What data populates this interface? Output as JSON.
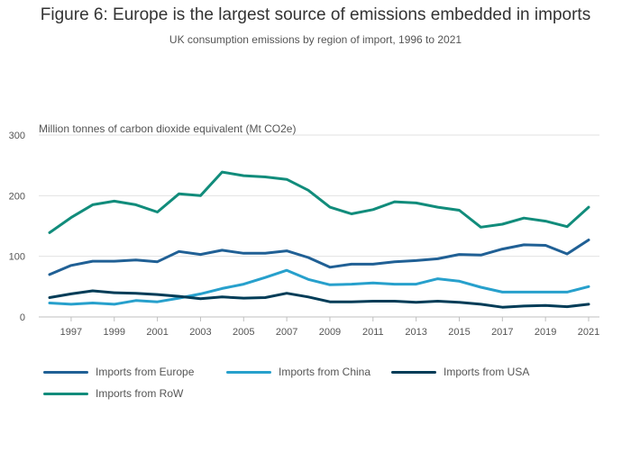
{
  "chart_data": {
    "type": "line",
    "title": "Figure 6: Europe is the largest source of emissions embedded in imports",
    "subtitle": "UK consumption emissions by region of import, 1996 to 2021",
    "ylabel": "Million tonnes of carbon dioxide equivalent (Mt CO2e)",
    "xlabel": "",
    "ylim": [
      0,
      300
    ],
    "yticks": [
      0,
      100,
      200,
      300
    ],
    "xlim": [
      1996,
      2021
    ],
    "xticks": [
      1997,
      1999,
      2001,
      2003,
      2005,
      2007,
      2009,
      2011,
      2013,
      2015,
      2017,
      2019,
      2021
    ],
    "grid": true,
    "legend": "bottom",
    "x": [
      1996,
      1997,
      1998,
      1999,
      2000,
      2001,
      2002,
      2003,
      2004,
      2005,
      2006,
      2007,
      2008,
      2009,
      2010,
      2011,
      2012,
      2013,
      2014,
      2015,
      2016,
      2017,
      2018,
      2019,
      2020,
      2021
    ],
    "series": [
      {
        "name": "Imports from Europe",
        "color": "#206095",
        "values": [
          70,
          85,
          92,
          92,
          94,
          91,
          108,
          103,
          110,
          105,
          105,
          109,
          98,
          82,
          87,
          87,
          91,
          93,
          96,
          103,
          102,
          112,
          119,
          118,
          104,
          127
        ]
      },
      {
        "name": "Imports from China",
        "color": "#27a0cc",
        "values": [
          23,
          21,
          23,
          21,
          27,
          25,
          31,
          38,
          47,
          54,
          65,
          77,
          62,
          53,
          54,
          56,
          54,
          54,
          63,
          59,
          49,
          41,
          41,
          41,
          41,
          50
        ]
      },
      {
        "name": "Imports from USA",
        "color": "#003c57",
        "values": [
          32,
          38,
          43,
          40,
          39,
          37,
          34,
          30,
          33,
          31,
          32,
          39,
          33,
          25,
          25,
          26,
          26,
          24,
          26,
          24,
          21,
          16,
          18,
          19,
          17,
          21
        ]
      },
      {
        "name": "Imports from RoW",
        "color": "#118c7b",
        "values": [
          139,
          164,
          185,
          191,
          185,
          173,
          203,
          200,
          239,
          233,
          231,
          227,
          209,
          181,
          170,
          177,
          190,
          188,
          181,
          176,
          148,
          153,
          163,
          158,
          149,
          181
        ]
      }
    ]
  }
}
